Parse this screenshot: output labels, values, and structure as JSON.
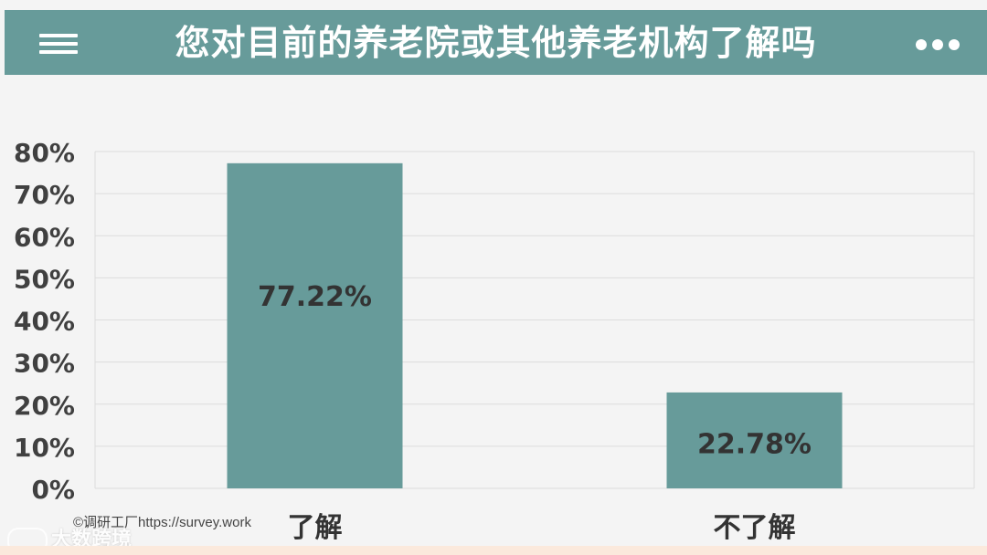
{
  "header": {
    "title": "您对目前的养老院或其他养老机构了解吗",
    "menu_icon": "hamburger-menu-icon",
    "more_icon": "more-dots-icon",
    "background_color": "#679b9a"
  },
  "chart_data": {
    "type": "bar",
    "title": "您对目前的养老院或其他养老机构了解吗",
    "categories": [
      "了解",
      "不了解"
    ],
    "values": [
      77.22,
      22.78
    ],
    "data_labels": [
      "77.22%",
      "22.78%"
    ],
    "ylim": [
      0,
      80
    ],
    "yticks": [
      "0%",
      "10%",
      "20%",
      "30%",
      "40%",
      "50%",
      "60%",
      "70%",
      "80%"
    ],
    "grid": true,
    "bar_color": "#679b9a",
    "xlabel": "",
    "ylabel": ""
  },
  "footer": {
    "credit": "©调研工厂https://survey.work",
    "watermark": "大数跨境"
  }
}
